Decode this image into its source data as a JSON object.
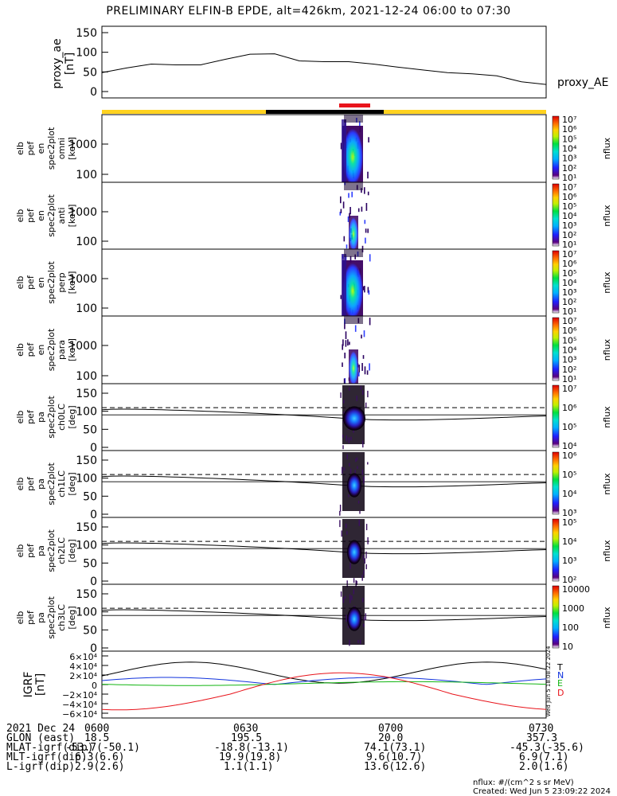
{
  "title": "PRELIMINARY ELFIN-B EPDE, alt=426km, 2021-12-24 06:00 to 07:30",
  "colors": {
    "yellow": "#ffd21f",
    "black": "#000000",
    "red": "#e8141b",
    "grf_t": "#000000",
    "grf_n": "#1133dd",
    "grf_e": "#12b512",
    "grf_d": "#e8141b"
  },
  "chart_data": [
    {
      "type": "line",
      "panel": "proxy_ae",
      "ylabel": "proxy_ae\n[nT]",
      "legend": "proxy_AE",
      "ylim": [
        0,
        160
      ],
      "yticks": [
        0,
        50,
        100,
        150
      ],
      "series": [
        {
          "name": "proxy_AE",
          "x": [
            0,
            5,
            10,
            15,
            20,
            25,
            30,
            35,
            40,
            45,
            50,
            55,
            60,
            65,
            70,
            75,
            80,
            85,
            90
          ],
          "values": [
            48,
            60,
            70,
            68,
            68,
            82,
            95,
            96,
            78,
            76,
            76,
            70,
            62,
            55,
            48,
            45,
            40,
            25,
            18
          ]
        }
      ]
    },
    {
      "type": "heatmap",
      "panel": "omni",
      "ylabel": [
        "elb",
        "pef",
        "en",
        "spec2plot",
        "omni",
        "[keV]"
      ],
      "yticks": [
        "100",
        "1000"
      ],
      "colorbar": {
        "label": "nflux",
        "ticks": [
          "10¹",
          "10²",
          "10³",
          "10⁴",
          "10⁵",
          "10⁶",
          "10⁷"
        ]
      }
    },
    {
      "type": "heatmap",
      "panel": "anti",
      "ylabel": [
        "elb",
        "pef",
        "en",
        "spec2plot",
        "anti",
        "[keV]"
      ],
      "yticks": [
        "100",
        "1000"
      ],
      "colorbar": {
        "label": "nflux",
        "ticks": [
          "10¹",
          "10²",
          "10³",
          "10⁴",
          "10⁵",
          "10⁶",
          "10⁷"
        ]
      }
    },
    {
      "type": "heatmap",
      "panel": "perp",
      "ylabel": [
        "elb",
        "pef",
        "en",
        "spec2plot",
        "perp",
        "[keV]"
      ],
      "yticks": [
        "100",
        "1000"
      ],
      "colorbar": {
        "label": "nflux",
        "ticks": [
          "10¹",
          "10²",
          "10³",
          "10⁴",
          "10⁵",
          "10⁶",
          "10⁷"
        ]
      }
    },
    {
      "type": "heatmap",
      "panel": "para",
      "ylabel": [
        "elb",
        "pef",
        "en",
        "spec2plot",
        "para",
        "[keV]"
      ],
      "yticks": [
        "100",
        "1000"
      ],
      "colorbar": {
        "label": "nflux",
        "ticks": [
          "10¹",
          "10²",
          "10³",
          "10⁴",
          "10⁵",
          "10⁶",
          "10⁷"
        ]
      }
    },
    {
      "type": "heatmap",
      "panel": "ch0LC",
      "ylabel": [
        "elb",
        "pef",
        "pa",
        "spec2plot",
        "ch0LC",
        "[deg]"
      ],
      "yticks": [
        "0",
        "50",
        "100",
        "150"
      ],
      "colorbar": {
        "label": "nflux",
        "ticks": [
          "10⁴",
          "10⁵",
          "10⁶",
          "10⁷"
        ]
      }
    },
    {
      "type": "heatmap",
      "panel": "ch1LC",
      "ylabel": [
        "elb",
        "pef",
        "pa",
        "spec2plot",
        "ch1LC",
        "[deg]"
      ],
      "yticks": [
        "0",
        "50",
        "100",
        "150"
      ],
      "colorbar": {
        "label": "nflux",
        "ticks": [
          "10³",
          "10⁴",
          "10⁵",
          "10⁶"
        ]
      }
    },
    {
      "type": "heatmap",
      "panel": "ch2LC",
      "ylabel": [
        "elb",
        "pef",
        "pa",
        "spec2plot",
        "ch2LC",
        "[deg]"
      ],
      "yticks": [
        "0",
        "50",
        "100",
        "150"
      ],
      "colorbar": {
        "label": "nflux",
        "ticks": [
          "10²",
          "10³",
          "10⁴",
          "10⁵"
        ]
      }
    },
    {
      "type": "heatmap",
      "panel": "ch3LC",
      "ylabel": [
        "elb",
        "pef",
        "pa",
        "spec2plot",
        "ch3LC",
        "[deg]"
      ],
      "yticks": [
        "0",
        "50",
        "100",
        "150"
      ],
      "colorbar": {
        "label": "nflux",
        "ticks": [
          "10",
          "100",
          "1000",
          "10000"
        ]
      }
    },
    {
      "type": "line",
      "panel": "igrf",
      "ylabel": "IGRF\n[nT]",
      "yticks": [
        "6×10⁴",
        "4×10⁴",
        "2×10⁴",
        "0",
        "−2×10⁴",
        "−4×10⁴",
        "−6×10⁴"
      ],
      "legend": [
        "T",
        "N",
        "E",
        "D"
      ],
      "side_note": "Wed Jun  5 18:08:22 2024"
    }
  ],
  "footer": {
    "rows": [
      {
        "label": "2021 Dec 24",
        "values": [
          "0600",
          "0630",
          "0700",
          "0730"
        ]
      },
      {
        "label": "GLON (east)",
        "values": [
          "18.5",
          "195.5",
          "20.0",
          "357.3"
        ]
      },
      {
        "label": "MLAT-igrf(dip)",
        "values": [
          "-53.7(-50.1)",
          "-18.8(-13.1)",
          "74.1(73.1)",
          "-45.3(-35.6)"
        ]
      },
      {
        "label": "MLT-igrf(dip)",
        "values": [
          "6.3(6.6)",
          "19.9(19.8)",
          "9.6(10.7)",
          "6.9(7.1)"
        ]
      },
      {
        "label": "L-igrf(dip)",
        "values": [
          "2.9(2.6)",
          "1.1(1.1)",
          "13.6(12.6)",
          "2.0(1.6)"
        ]
      }
    ],
    "nflux_units": "nflux: #/(cm^2 s sr MeV)",
    "created": "Created: Wed Jun  5 23:09:22 2024"
  }
}
